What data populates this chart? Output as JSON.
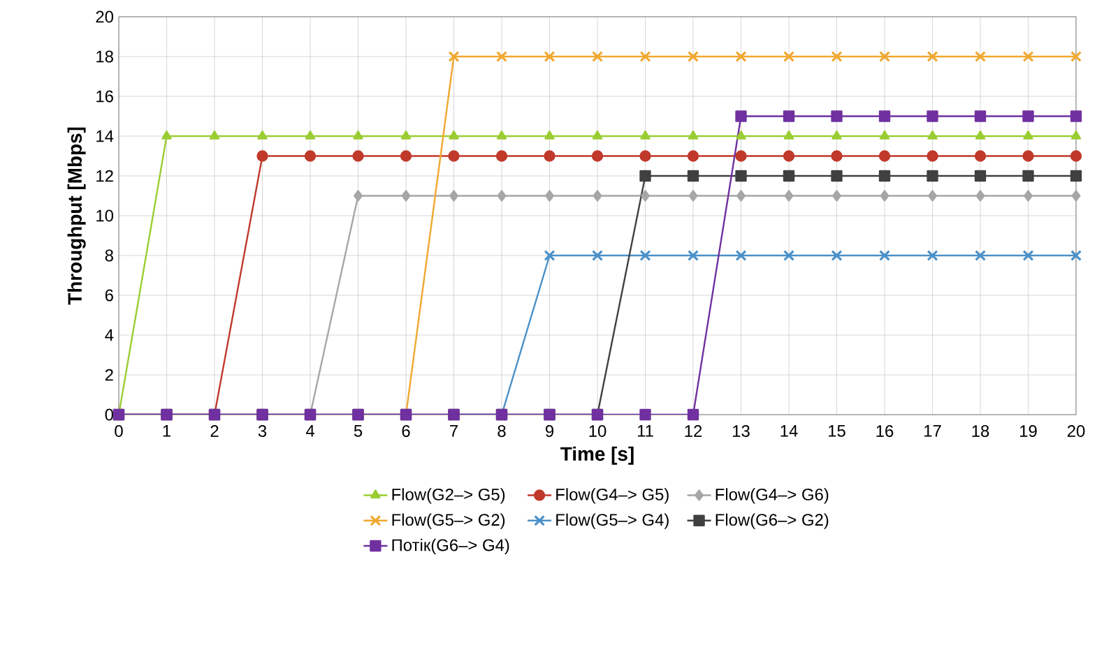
{
  "chart_data": {
    "type": "line",
    "xlabel": "Time [s]",
    "ylabel": "Throughput [Mbps]",
    "x": [
      0,
      1,
      2,
      3,
      4,
      5,
      6,
      7,
      8,
      9,
      10,
      11,
      12,
      13,
      14,
      15,
      16,
      17,
      18,
      19,
      20
    ],
    "xlim": [
      0,
      20
    ],
    "xticks": [
      0,
      1,
      2,
      3,
      4,
      5,
      6,
      7,
      8,
      9,
      10,
      11,
      12,
      13,
      14,
      15,
      16,
      17,
      18,
      19,
      20
    ],
    "ylim": [
      0,
      20
    ],
    "yticks": [
      0,
      2,
      4,
      6,
      8,
      10,
      12,
      14,
      16,
      18,
      20
    ],
    "grid": true,
    "legend": "bottom",
    "line_style": "solid",
    "series": [
      {
        "name": "Flow(G2–> G5)",
        "color": "#9acd32",
        "marker": "triangle",
        "values": [
          0,
          14,
          14,
          14,
          14,
          14,
          14,
          14,
          14,
          14,
          14,
          14,
          14,
          14,
          14,
          14,
          14,
          14,
          14,
          14,
          14
        ]
      },
      {
        "name": "Flow(G4–> G5)",
        "color": "#c0392b",
        "marker": "circle",
        "values": [
          0,
          0,
          0,
          13,
          13,
          13,
          13,
          13,
          13,
          13,
          13,
          13,
          13,
          13,
          13,
          13,
          13,
          13,
          13,
          13,
          13
        ]
      },
      {
        "name": "Flow(G4–> G6)",
        "color": "#a6a6a6",
        "marker": "diamond",
        "values": [
          0,
          0,
          0,
          0,
          0,
          11,
          11,
          11,
          11,
          11,
          11,
          11,
          11,
          11,
          11,
          11,
          11,
          11,
          11,
          11,
          11
        ]
      },
      {
        "name": "Flow(G5–> G2)",
        "color": "#f0a830",
        "marker": "cross",
        "values": [
          null,
          null,
          null,
          null,
          null,
          0,
          0,
          18,
          18,
          18,
          18,
          18,
          18,
          18,
          18,
          18,
          18,
          18,
          18,
          18,
          18
        ]
      },
      {
        "name": "Flow(G5–> G4)",
        "color": "#4a90c8",
        "marker": "cross",
        "values": [
          null,
          null,
          null,
          null,
          null,
          null,
          null,
          0,
          0,
          8,
          8,
          8,
          8,
          8,
          8,
          8,
          8,
          8,
          8,
          8,
          8
        ]
      },
      {
        "name": "Flow(G6–> G2)",
        "color": "#404040",
        "marker": "square",
        "values": [
          0,
          0,
          0,
          0,
          0,
          0,
          0,
          0,
          0,
          0,
          0,
          12,
          12,
          12,
          12,
          12,
          12,
          12,
          12,
          12,
          12
        ]
      },
      {
        "name": "Потік(G6–> G4)",
        "color": "#7030a0",
        "marker": "square",
        "values": [
          0,
          0,
          0,
          0,
          0,
          0,
          0,
          0,
          0,
          0,
          0,
          0,
          0,
          15,
          15,
          15,
          15,
          15,
          15,
          15,
          15
        ]
      }
    ]
  }
}
